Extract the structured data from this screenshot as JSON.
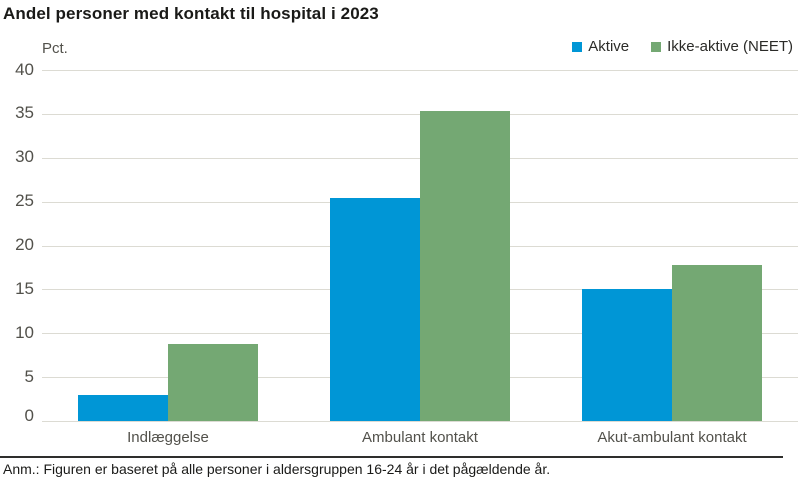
{
  "title": "Andel personer med kontakt til hospital i 2023",
  "note": "Anm.: Figuren er baseret på alle personer i aldersgruppen 16-24 år i det pågældende år.",
  "colors": {
    "aktive_blue": "#0096D6",
    "neet_green": "#74A873",
    "gridline": "#DCDBD3",
    "axis_text": "#52514B",
    "title_text": "#1A1A18"
  },
  "chart_data": {
    "type": "bar",
    "title": "Andel personer med kontakt til hospital i 2023",
    "ylabel": "Pct.",
    "xlabel": "",
    "categories": [
      "Indlæggelse",
      "Ambulant kontakt",
      "Akut-ambulant kontakt"
    ],
    "series": [
      {
        "name": "Aktive",
        "color": "#0096D6",
        "values": [
          3.0,
          25.5,
          15.1
        ]
      },
      {
        "name": "Ikke-aktive (NEET)",
        "color": "#74A873",
        "values": [
          8.8,
          35.4,
          17.8
        ]
      }
    ],
    "ylim": [
      0,
      40
    ],
    "ytick_step": 5,
    "grid": true,
    "legend_position": "top-right",
    "note": "Anm.: Figuren er baseret på alle personer i aldersgruppen 16-24 år i det pågældende år."
  }
}
